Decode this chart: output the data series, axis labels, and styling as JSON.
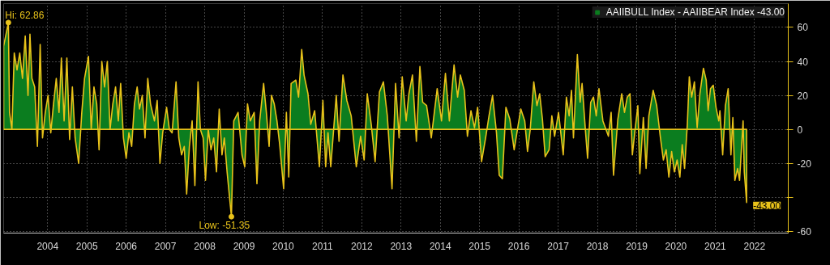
{
  "chart_data": {
    "type": "area",
    "x": [
      2003.38,
      2003.5,
      2003.53,
      2003.59,
      2003.65,
      2003.72,
      2003.79,
      2003.86,
      2003.93,
      2004.0,
      2004.05,
      2004.1,
      2004.17,
      2004.24,
      2004.31,
      2004.37,
      2004.44,
      2004.51,
      2004.58,
      2004.65,
      2004.72,
      2004.79,
      2004.85,
      2004.92,
      2004.99,
      2005.06,
      2005.13,
      2005.2,
      2005.29,
      2005.37,
      2005.44,
      2005.54,
      2005.61,
      2005.68,
      2005.75,
      2005.81,
      2005.88,
      2005.95,
      2006.02,
      2006.09,
      2006.16,
      2006.23,
      2006.3,
      2006.36,
      2006.43,
      2006.5,
      2006.57,
      2006.64,
      2006.71,
      2006.78,
      2006.84,
      2006.91,
      2006.98,
      2007.05,
      2007.12,
      2007.22,
      2007.29,
      2007.36,
      2007.43,
      2007.53,
      2007.6,
      2007.67,
      2007.77,
      2007.84,
      2007.91,
      2007.98,
      2008.04,
      2008.11,
      2008.18,
      2008.25,
      2008.33,
      2008.39,
      2008.46,
      2008.52,
      2008.59,
      2008.66,
      2008.73,
      2008.8,
      2008.87,
      2008.94,
      2009.0,
      2009.07,
      2009.18,
      2009.24,
      2009.35,
      2009.45,
      2009.52,
      2009.59,
      2009.66,
      2009.76,
      2009.83,
      2009.9,
      2010.0,
      2010.07,
      2010.14,
      2010.2,
      2010.27,
      2010.34,
      2010.41,
      2010.51,
      2010.58,
      2010.64,
      2010.7,
      2010.82,
      2010.89,
      2010.97,
      2011.03,
      2011.13,
      2011.2,
      2011.3,
      2011.42,
      2011.51,
      2011.58,
      2011.64,
      2011.71,
      2011.85,
      2011.92,
      2012.02,
      2012.12,
      2012.23,
      2012.36,
      2012.47,
      2012.56,
      2012.64,
      2012.74,
      2012.84,
      2012.95,
      2013.05,
      2013.15,
      2013.27,
      2013.36,
      2013.45,
      2013.53,
      2013.63,
      2013.7,
      2013.79,
      2013.89,
      2013.98,
      2014.05,
      2014.15,
      2014.27,
      2014.42,
      2014.53,
      2014.63,
      2014.73,
      2014.85,
      2014.94,
      2015.01,
      2015.11,
      2015.19,
      2015.28,
      2015.37,
      2015.45,
      2015.55,
      2015.66,
      2015.74,
      2015.83,
      2015.93,
      2016.0,
      2016.08,
      2016.17,
      2016.27,
      2016.38,
      2016.45,
      2016.55,
      2016.65,
      2016.72,
      2016.79,
      2016.88,
      2016.96,
      2017.03,
      2017.1,
      2017.17,
      2017.27,
      2017.34,
      2017.41,
      2017.51,
      2017.63,
      2017.71,
      2017.78,
      2017.84,
      2017.89,
      2017.99,
      2018.06,
      2018.11,
      2018.19,
      2018.25,
      2018.33,
      2018.4,
      2018.47,
      2018.54,
      2018.64,
      2018.78,
      2018.85,
      2018.91,
      2019.02,
      2019.12,
      2019.19,
      2019.26,
      2019.33,
      2019.39,
      2019.46,
      2019.53,
      2019.58,
      2019.67,
      2019.74,
      2019.81,
      2019.92,
      2020.01,
      2020.1,
      2020.18,
      2020.25,
      2020.32,
      2020.39,
      2020.46,
      2020.53,
      2020.6,
      2020.66,
      2020.72,
      2020.79,
      2020.84,
      2020.9,
      2020.97,
      2021.04,
      2021.11,
      2021.2,
      2021.27,
      2021.32,
      2021.38,
      2021.45,
      2021.52,
      2021.59,
      2021.62,
      2021.69,
      2021.76,
      2021.83,
      2021.9,
      2021.95,
      2022.0,
      2022.07,
      2022.12,
      2022.21,
      2022.24,
      2022.3
    ],
    "series": [
      {
        "name": "AAIIBULL Index - AAIIBEAR Index -43.00",
        "color": "#0b7d1f",
        "values": [
          49,
          62.86,
          10,
          0,
          45,
          35,
          45,
          30,
          55,
          20,
          56,
          30,
          25,
          -10,
          50,
          -5,
          10,
          20,
          -2,
          15,
          30,
          10,
          42,
          5,
          42,
          -6,
          25,
          -5,
          -20,
          10,
          30,
          43,
          0,
          25,
          15,
          -12,
          40,
          25,
          40,
          0,
          15,
          25,
          5,
          27,
          -5,
          -17,
          -2,
          -10,
          15,
          25,
          12,
          20,
          -5,
          30,
          15,
          5,
          17,
          -20,
          -2,
          13,
          0,
          -2,
          28,
          -5,
          -15,
          -10,
          -38,
          -10,
          5,
          -33,
          28,
          0,
          -5,
          -30,
          0,
          -12,
          -5,
          -25,
          12,
          -15,
          -5,
          -25,
          -51.35,
          5,
          10,
          -15,
          -22,
          15,
          5,
          10,
          -32,
          5,
          27,
          10,
          -10,
          20,
          15,
          5,
          -9,
          -35,
          10,
          -28,
          27,
          29,
          19,
          47,
          32,
          21,
          3,
          11,
          -22,
          17,
          -22,
          -2,
          -22,
          20,
          -7,
          32,
          17,
          8,
          -22,
          -4,
          -18,
          21,
          3,
          -19,
          22,
          28,
          8,
          -35,
          27,
          -5,
          31,
          5,
          21,
          32,
          -7,
          37,
          16,
          14,
          -5,
          24,
          5,
          33,
          5,
          38,
          19,
          32,
          23,
          -4,
          11,
          1,
          13,
          -19,
          -4,
          8,
          20,
          -2,
          -27,
          -29,
          13,
          6,
          -12,
          -2,
          12,
          5,
          -13,
          0,
          28,
          14,
          21,
          6,
          -16,
          -12,
          8,
          -4,
          10,
          -15,
          19,
          8,
          23,
          -5,
          44,
          16,
          27,
          1,
          -17,
          16,
          19,
          8,
          24,
          5,
          -4,
          10,
          -27,
          6,
          21,
          10,
          19,
          21,
          -15,
          0,
          14,
          -26,
          7,
          -23,
          8,
          23,
          14,
          -4,
          -18,
          -12,
          -28,
          -13,
          -25,
          -18,
          -28,
          -9,
          -23,
          3,
          31,
          19,
          28,
          1,
          21,
          36,
          29,
          11,
          24,
          26,
          13,
          5,
          11,
          -15,
          14,
          24,
          -15,
          7,
          -30,
          -23,
          -30,
          5,
          -25,
          -43
        ]
      }
    ],
    "xlim": [
      2003.38,
      2023.36
    ],
    "ylim": [
      -61,
      74
    ],
    "xticks": [
      {
        "value": 2004.5,
        "label": "2004"
      },
      {
        "value": 2005.5,
        "label": "2005"
      },
      {
        "value": 2006.5,
        "label": "2006"
      },
      {
        "value": 2007.5,
        "label": "2007"
      },
      {
        "value": 2008.5,
        "label": "2008"
      },
      {
        "value": 2009.5,
        "label": "2009"
      },
      {
        "value": 2010.5,
        "label": "2010"
      },
      {
        "value": 2011.5,
        "label": "2011"
      },
      {
        "value": 2012.5,
        "label": "2012"
      },
      {
        "value": 2013.5,
        "label": "2013"
      },
      {
        "value": 2014.5,
        "label": "2014"
      },
      {
        "value": 2015.5,
        "label": "2015"
      },
      {
        "value": 2016.5,
        "label": "2016"
      },
      {
        "value": 2017.5,
        "label": "2017"
      },
      {
        "value": 2018.5,
        "label": "2018"
      },
      {
        "value": 2019.5,
        "label": "2019"
      },
      {
        "value": 2020.5,
        "label": "2020"
      },
      {
        "value": 2021.5,
        "label": "2021"
      },
      {
        "value": 2022.5,
        "label": "2022"
      }
    ],
    "yticks": [
      60,
      40,
      20,
      0,
      -20,
      {
        "value": -40,
        "label": null
      },
      -60
    ],
    "grid": true,
    "legend": "top right",
    "annotations": [
      {
        "text": "Hi: 62.86",
        "x": 2003.5,
        "y": 62.86
      },
      {
        "text": "Low: -51.35",
        "x": 2009.18,
        "y": -51.35
      },
      {
        "text": "-43.00",
        "x": 2022.3,
        "y": -43
      }
    ]
  }
}
